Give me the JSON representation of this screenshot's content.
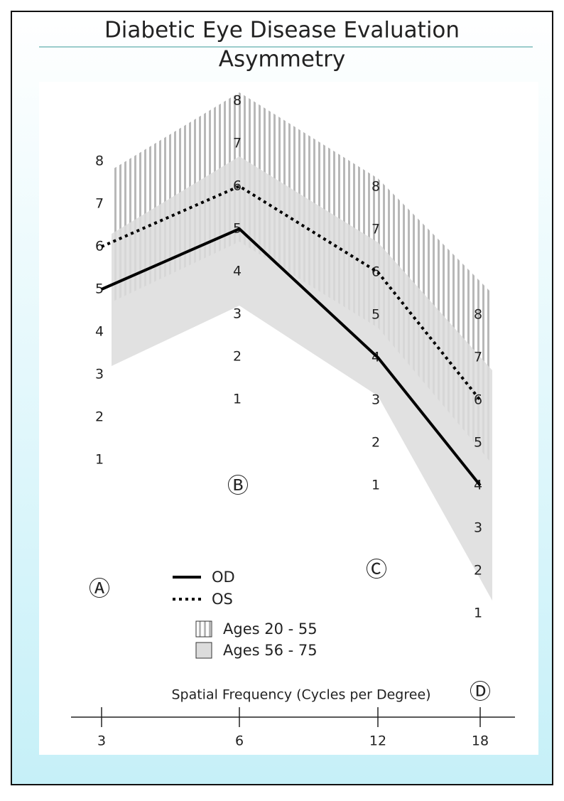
{
  "title": "Diabetic Eye Disease Evaluation",
  "subtitle": "Asymmetry",
  "chart_data": {
    "type": "line",
    "x_label": "Spatial Frequency (Cycles per Degree)",
    "categories": [
      "3",
      "6",
      "12",
      "18"
    ],
    "column_labels": [
      "Ⓐ",
      "Ⓑ",
      "Ⓒ",
      "Ⓓ"
    ],
    "ylim": [
      1,
      8
    ],
    "yticks": [
      1,
      2,
      3,
      4,
      5,
      6,
      7,
      8
    ],
    "series": [
      {
        "name": "OD",
        "color": "#000000",
        "style": "solid",
        "values": [
          5,
          5,
          4,
          4
        ]
      },
      {
        "name": "OS",
        "color": "#000000",
        "style": "dotted",
        "values": [
          6,
          6,
          6,
          6
        ]
      }
    ],
    "bands": [
      {
        "name": "Ages 20 - 55",
        "color": "#b8b8b8",
        "pattern": "striped",
        "lower": [
          4.7,
          4.7,
          4.7,
          4.5
        ],
        "upper": [
          7.8,
          8.2,
          8.2,
          8.5
        ]
      },
      {
        "name": "Ages 56 - 75",
        "color": "#dcdcdc",
        "pattern": "solid",
        "lower": [
          3.2,
          3.2,
          3.1,
          1.3
        ],
        "upper": [
          6.3,
          6.7,
          6.7,
          6.7
        ]
      }
    ]
  }
}
